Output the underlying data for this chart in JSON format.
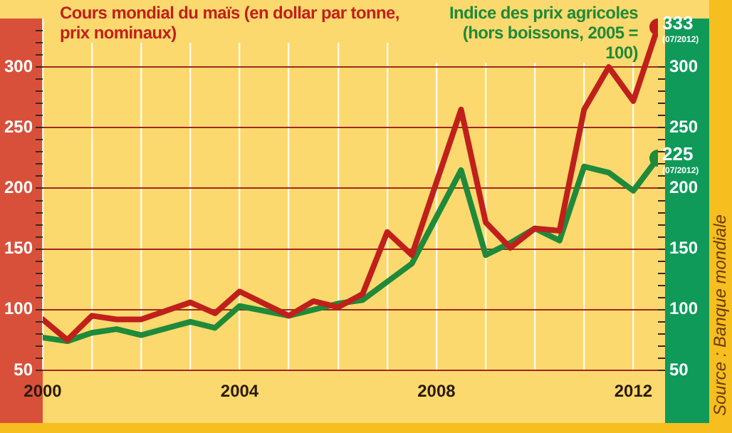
{
  "chart_data": {
    "type": "line",
    "series": [
      {
        "name": "Cours mondial du maïs (en dollar par tonne, prix nominaux)",
        "color": "#c0201c",
        "x": [
          2000,
          2000.5,
          2001,
          2001.5,
          2002,
          2003,
          2003.5,
          2004,
          2005,
          2005.5,
          2006,
          2006.5,
          2007,
          2007.5,
          2008.5,
          2009,
          2009.5,
          2010,
          2010.5,
          2011,
          2011.5,
          2012,
          2012.5
        ],
        "values": [
          92,
          75,
          95,
          92,
          92,
          106,
          97,
          115,
          95,
          107,
          102,
          113,
          164,
          145,
          265,
          172,
          151,
          167,
          165,
          265,
          300,
          272,
          333
        ],
        "value_labels": [
          null,
          null,
          null,
          null,
          null,
          null,
          null,
          null,
          null,
          null,
          null,
          null,
          null,
          null,
          null,
          null,
          null,
          null,
          null,
          null,
          null,
          null,
          "333"
        ]
      },
      {
        "name": "Indice des prix agricoles (hors boissons, 2005 = 100)",
        "color": "#1e8a3a",
        "axis": "y2",
        "x": [
          2000,
          2000.5,
          2001,
          2001.5,
          2002,
          2003,
          2003.5,
          2004,
          2005,
          2005.5,
          2006,
          2006.5,
          2007,
          2007.5,
          2008.5,
          2009,
          2009.5,
          2010,
          2010.5,
          2011,
          2011.5,
          2012,
          2012.5
        ],
        "values": [
          77,
          74,
          81,
          84,
          79,
          90,
          85,
          103,
          95,
          100,
          105,
          108,
          123,
          138,
          215,
          145,
          155,
          167,
          157,
          218,
          213,
          198,
          225
        ],
        "value_labels": [
          null,
          null,
          null,
          null,
          null,
          null,
          null,
          null,
          null,
          null,
          null,
          null,
          null,
          null,
          null,
          null,
          null,
          null,
          null,
          null,
          null,
          null,
          "225"
        ]
      }
    ],
    "xlim": [
      2000,
      2012.5
    ],
    "xticks": [
      2000,
      {
        "value": 2001,
        "label": null
      },
      {
        "value": 2002,
        "label": null
      },
      {
        "value": 2003,
        "label": null
      },
      2004,
      {
        "value": 2005,
        "label": null
      },
      {
        "value": 2006,
        "label": null
      },
      {
        "value": 2007,
        "label": null
      },
      2008,
      {
        "value": 2009,
        "label": null
      },
      {
        "value": 2010,
        "label": null
      },
      {
        "value": 2011,
        "label": null
      },
      2012
    ],
    "ylim": [
      50,
      340
    ],
    "yticks": [
      50,
      {
        "value": 60,
        "label": null
      },
      {
        "value": 70,
        "label": null
      },
      {
        "value": 80,
        "label": null
      },
      {
        "value": 90,
        "label": null
      },
      100,
      {
        "value": 110,
        "label": null
      },
      {
        "value": 120,
        "label": null
      },
      {
        "value": 130,
        "label": null
      },
      {
        "value": 140,
        "label": null
      },
      150,
      {
        "value": 160,
        "label": null
      },
      {
        "value": 170,
        "label": null
      },
      {
        "value": 180,
        "label": null
      },
      {
        "value": 190,
        "label": null
      },
      200,
      {
        "value": 210,
        "label": null
      },
      {
        "value": 220,
        "label": null
      },
      {
        "value": 230,
        "label": null
      },
      {
        "value": 240,
        "label": null
      },
      250,
      {
        "value": 260,
        "label": null
      },
      {
        "value": 270,
        "label": null
      },
      {
        "value": 280,
        "label": null
      },
      {
        "value": 290,
        "label": null
      },
      300,
      {
        "value": 310,
        "label": null
      },
      {
        "value": 320,
        "label": null
      },
      {
        "value": 330,
        "label": null
      }
    ],
    "y2lim": [
      50,
      340
    ],
    "y2ticks": [
      50,
      {
        "value": 60,
        "label": null
      },
      {
        "value": 70,
        "label": null
      },
      {
        "value": 80,
        "label": null
      },
      {
        "value": 90,
        "label": null
      },
      100,
      {
        "value": 110,
        "label": null
      },
      {
        "value": 120,
        "label": null
      },
      {
        "value": 130,
        "label": null
      },
      {
        "value": 140,
        "label": null
      },
      150,
      {
        "value": 160,
        "label": null
      },
      {
        "value": 170,
        "label": null
      },
      {
        "value": 180,
        "label": null
      },
      {
        "value": 190,
        "label": null
      },
      200,
      {
        "value": 210,
        "label": null
      },
      {
        "value": 220,
        "label": null
      },
      {
        "value": 230,
        "label": null
      },
      {
        "value": 240,
        "label": null
      },
      250,
      {
        "value": 260,
        "label": null
      },
      {
        "value": 270,
        "label": null
      },
      {
        "value": 280,
        "label": null
      },
      {
        "value": 290,
        "label": null
      },
      300
    ],
    "grid": true,
    "legend": false,
    "line_style": "solid",
    "annotations": [
      {
        "text": "(07/2012)",
        "x": 2012.5,
        "y": 333
      },
      {
        "text": "(07/2012)",
        "x": 2012.5,
        "y": 225
      },
      "Source : Banque mondiale"
    ]
  }
}
